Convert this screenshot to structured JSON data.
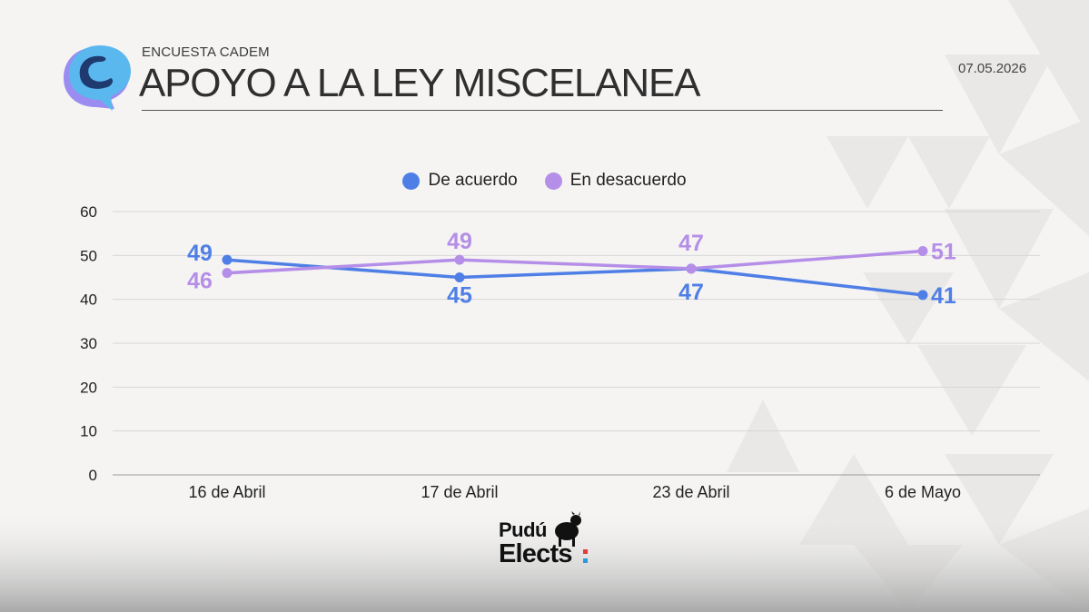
{
  "header": {
    "subtitle": "ENCUESTA CADEM",
    "title": "APOYO A LA LEY MISCELANEA",
    "date": "07.05.2026"
  },
  "brand": {
    "line1": "Pudú",
    "line2": "Elects"
  },
  "colors": {
    "de_acuerdo": "#4f7fe6",
    "en_desacuerdo": "#b58ee8",
    "gridline": "#d6d6d6",
    "axis_text": "#222222",
    "logo_light": "#5ab8ee",
    "logo_dark": "#1f3a6e",
    "logo_purple": "#9a8cf0"
  },
  "chart_data": {
    "type": "line",
    "categories": [
      "16 de Abril",
      "17 de Abril",
      "23 de Abril",
      "6 de Mayo"
    ],
    "series": [
      {
        "name": "De acuerdo",
        "values": [
          49,
          45,
          47,
          41
        ]
      },
      {
        "name": "En desacuerdo",
        "values": [
          46,
          49,
          47,
          51
        ]
      }
    ],
    "ylim": [
      0,
      60
    ],
    "yticks": [
      0,
      10,
      20,
      30,
      40,
      50,
      60
    ],
    "grid": true,
    "legend": "top-center"
  }
}
